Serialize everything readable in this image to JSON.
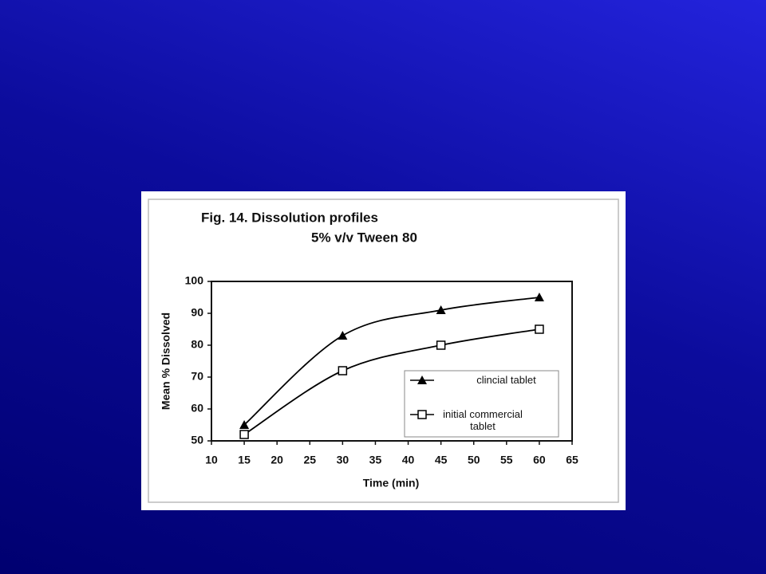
{
  "chart_data": {
    "type": "line",
    "title": "Fig. 14. Dissolution profiles",
    "subtitle": "5% v/v Tween 80",
    "x_label": "Time (min)",
    "y_label": "Mean % Dissolved",
    "x": [
      15,
      30,
      45,
      60
    ],
    "series": [
      {
        "name": "clincial tablet",
        "color": "#000000",
        "marker": "triangle",
        "values": [
          55,
          83,
          91,
          95
        ]
      },
      {
        "name": "initial commercial tablet",
        "color": "#000000",
        "marker": "square",
        "values": [
          52,
          72,
          80,
          85
        ]
      }
    ],
    "xlim": [
      10,
      65
    ],
    "xticks": [
      10,
      15,
      20,
      25,
      30,
      35,
      40,
      45,
      50,
      55,
      60,
      65
    ],
    "ylim": [
      50,
      100
    ],
    "yticks": [
      50,
      60,
      70,
      80,
      90,
      100
    ],
    "smooth": true
  }
}
